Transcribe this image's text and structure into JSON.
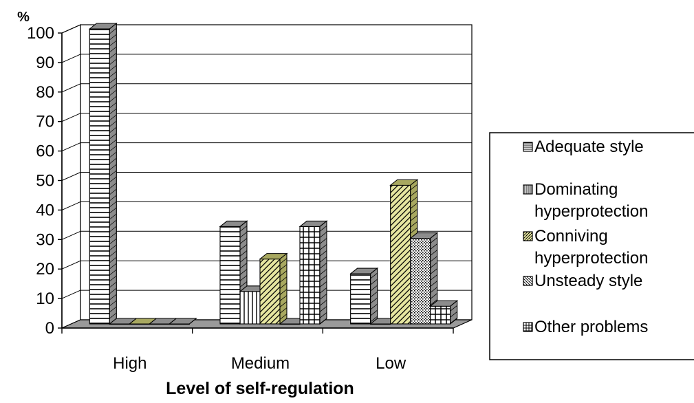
{
  "chart_data": {
    "type": "bar",
    "ylabel": "%",
    "xlabel": "Level of self-regulation",
    "ylim": [
      0,
      100
    ],
    "yticks": [
      0,
      10,
      20,
      30,
      40,
      50,
      60,
      70,
      80,
      90,
      100
    ],
    "grid": true,
    "legend_position": "right",
    "categories": [
      "High",
      "Medium",
      "Low"
    ],
    "series": [
      {
        "name": "Adequate style",
        "values": [
          100,
          33,
          17
        ],
        "color": "#ffffff",
        "pattern": "hlines"
      },
      {
        "name": "Dominating hyperprotection",
        "values": [
          0,
          11,
          0
        ],
        "color": "#ffffff",
        "pattern": "vlines"
      },
      {
        "name": "Conniving hyperprotection",
        "values": [
          0,
          22,
          47
        ],
        "color": "#e6e6a0",
        "pattern": "diag"
      },
      {
        "name": "Unsteady style",
        "values": [
          0,
          0,
          29
        ],
        "color": "#ffffff",
        "pattern": "dots"
      },
      {
        "name": "Other problems",
        "values": [
          0,
          33,
          6
        ],
        "color": "#ffffff",
        "pattern": "grid"
      }
    ]
  }
}
